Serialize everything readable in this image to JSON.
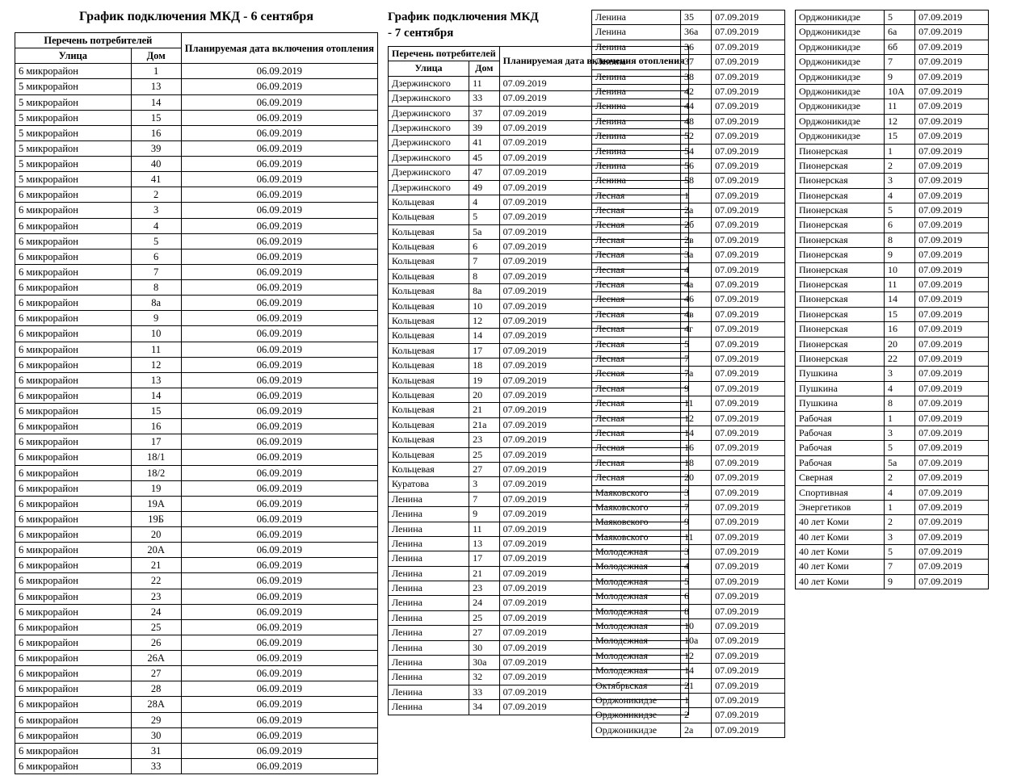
{
  "title1": "График подключения МКД - 6 сентября",
  "title2_a": "График подключения МКД",
  "title2_b": "- 7 сентября",
  "headers1": {
    "consumers": "Перечень потребителей",
    "plannedDate": "Планируемая дата включения отопления",
    "street": "Улица",
    "house": "Дом"
  },
  "headers2": {
    "consumers": "Перечень потребителей",
    "plannedDate": "Планируемая дата включения отопления",
    "street": "Улица",
    "house": "Дом"
  },
  "table1": [
    [
      "6 микрорайон",
      "1",
      "06.09.2019"
    ],
    [
      "5 микрорайон",
      "13",
      "06.09.2019"
    ],
    [
      "5 микрорайон",
      "14",
      "06.09.2019"
    ],
    [
      "5 микрорайон",
      "15",
      "06.09.2019"
    ],
    [
      "5 микрорайон",
      "16",
      "06.09.2019"
    ],
    [
      "5 микрорайон",
      "39",
      "06.09.2019"
    ],
    [
      "5 микрорайон",
      "40",
      "06.09.2019"
    ],
    [
      "5 микрорайон",
      "41",
      "06.09.2019"
    ],
    [
      "6 микрорайон",
      "2",
      "06.09.2019"
    ],
    [
      "6 микрорайон",
      "3",
      "06.09.2019"
    ],
    [
      "6 микрорайон",
      "4",
      "06.09.2019"
    ],
    [
      "6 микрорайон",
      "5",
      "06.09.2019"
    ],
    [
      "6 микрорайон",
      "6",
      "06.09.2019"
    ],
    [
      "6 микрорайон",
      "7",
      "06.09.2019"
    ],
    [
      "6 микрорайон",
      "8",
      "06.09.2019"
    ],
    [
      "6 микрорайон",
      "8а",
      "06.09.2019"
    ],
    [
      "6 микрорайон",
      "9",
      "06.09.2019"
    ],
    [
      "6 микрорайон",
      "10",
      "06.09.2019"
    ],
    [
      "6 микрорайон",
      "11",
      "06.09.2019"
    ],
    [
      "6 микрорайон",
      "12",
      "06.09.2019"
    ],
    [
      "6 микрорайон",
      "13",
      "06.09.2019"
    ],
    [
      "6 микрорайон",
      "14",
      "06.09.2019"
    ],
    [
      "6 микрорайон",
      "15",
      "06.09.2019"
    ],
    [
      "6 микрорайон",
      "16",
      "06.09.2019"
    ],
    [
      "6 микрорайон",
      "17",
      "06.09.2019"
    ],
    [
      "6 микрорайон",
      "18/1",
      "06.09.2019"
    ],
    [
      "6 микрорайон",
      "18/2",
      "06.09.2019"
    ],
    [
      "6 микрорайон",
      "19",
      "06.09.2019"
    ],
    [
      "6 микрорайон",
      "19А",
      "06.09.2019"
    ],
    [
      "6 микрорайон",
      "19Б",
      "06.09.2019"
    ],
    [
      "6 микрорайон",
      "20",
      "06.09.2019"
    ],
    [
      "6 микрорайон",
      "20А",
      "06.09.2019"
    ],
    [
      "6 микрорайон",
      "21",
      "06.09.2019"
    ],
    [
      "6 микрорайон",
      "22",
      "06.09.2019"
    ],
    [
      "6 микрорайон",
      "23",
      "06.09.2019"
    ],
    [
      "6 микрорайон",
      "24",
      "06.09.2019"
    ],
    [
      "6 микрорайон",
      "25",
      "06.09.2019"
    ],
    [
      "6 микрорайон",
      "26",
      "06.09.2019"
    ],
    [
      "6 микрорайон",
      "26А",
      "06.09.2019"
    ],
    [
      "6 микрорайон",
      "27",
      "06.09.2019"
    ],
    [
      "6 микрорайон",
      "28",
      "06.09.2019"
    ],
    [
      "6 микрорайон",
      "28А",
      "06.09.2019"
    ],
    [
      "6 микрорайон",
      "29",
      "06.09.2019"
    ],
    [
      "6 микрорайон",
      "30",
      "06.09.2019"
    ],
    [
      "6 микрорайон",
      "31",
      "06.09.2019"
    ],
    [
      "6 микрорайон",
      "33",
      "06.09.2019"
    ]
  ],
  "table2a": [
    [
      "Дзержинского",
      "11",
      "07.09.2019"
    ],
    [
      "Дзержинского",
      "33",
      "07.09.2019"
    ],
    [
      "Дзержинского",
      "37",
      "07.09.2019"
    ],
    [
      "Дзержинского",
      "39",
      "07.09.2019"
    ],
    [
      "Дзержинского",
      "41",
      "07.09.2019"
    ],
    [
      "Дзержинского",
      "45",
      "07.09.2019"
    ],
    [
      "Дзержинского",
      "47",
      "07.09.2019"
    ],
    [
      "Дзержинского",
      "49",
      "07.09.2019"
    ],
    [
      "Кольцевая",
      "4",
      "07.09.2019"
    ],
    [
      "Кольцевая",
      "5",
      "07.09.2019"
    ],
    [
      "Кольцевая",
      "5а",
      "07.09.2019"
    ],
    [
      "Кольцевая",
      "6",
      "07.09.2019"
    ],
    [
      "Кольцевая",
      "7",
      "07.09.2019"
    ],
    [
      "Кольцевая",
      "8",
      "07.09.2019"
    ],
    [
      "Кольцевая",
      "8а",
      "07.09.2019"
    ],
    [
      "Кольцевая",
      "10",
      "07.09.2019"
    ],
    [
      "Кольцевая",
      "12",
      "07.09.2019"
    ],
    [
      "Кольцевая",
      "14",
      "07.09.2019"
    ],
    [
      "Кольцевая",
      "17",
      "07.09.2019"
    ],
    [
      "Кольцевая",
      "18",
      "07.09.2019"
    ],
    [
      "Кольцевая",
      "19",
      "07.09.2019"
    ],
    [
      "Кольцевая",
      "20",
      "07.09.2019"
    ],
    [
      "Кольцевая",
      "21",
      "07.09.2019"
    ],
    [
      "Кольцевая",
      "21а",
      "07.09.2019"
    ],
    [
      "Кольцевая",
      "23",
      "07.09.2019"
    ],
    [
      "Кольцевая",
      "25",
      "07.09.2019"
    ],
    [
      "Кольцевая",
      "27",
      "07.09.2019"
    ],
    [
      "Куратова",
      "3",
      "07.09.2019"
    ],
    [
      "Ленина",
      "7",
      "07.09.2019"
    ],
    [
      "Ленина",
      "9",
      "07.09.2019"
    ],
    [
      "Ленина",
      "11",
      "07.09.2019"
    ],
    [
      "Ленина",
      "13",
      "07.09.2019"
    ],
    [
      "Ленина",
      "17",
      "07.09.2019"
    ],
    [
      "Ленина",
      "21",
      "07.09.2019"
    ],
    [
      "Ленина",
      "23",
      "07.09.2019"
    ],
    [
      "Ленина",
      "24",
      "07.09.2019"
    ],
    [
      "Ленина",
      "25",
      "07.09.2019"
    ],
    [
      "Ленина",
      "27",
      "07.09.2019"
    ],
    [
      "Ленина",
      "30",
      "07.09.2019"
    ],
    [
      "Ленина",
      "30а",
      "07.09.2019"
    ],
    [
      "Ленина",
      "32",
      "07.09.2019"
    ],
    [
      "Ленина",
      "33",
      "07.09.2019"
    ],
    [
      "Ленина",
      "34",
      "07.09.2019"
    ]
  ],
  "table2b": [
    [
      "Ленина",
      "35",
      "07.09.2019"
    ],
    [
      "Ленина",
      "36а",
      "07.09.2019"
    ],
    [
      "Ленина",
      "36",
      "07.09.2019"
    ],
    [
      "Ленина",
      "37",
      "07.09.2019"
    ],
    [
      "Ленина",
      "38",
      "07.09.2019"
    ],
    [
      "Ленина",
      "42",
      "07.09.2019"
    ],
    [
      "Ленина",
      "44",
      "07.09.2019"
    ],
    [
      "Ленина",
      "48",
      "07.09.2019"
    ],
    [
      "Ленина",
      "52",
      "07.09.2019"
    ],
    [
      "Ленина",
      "54",
      "07.09.2019"
    ],
    [
      "Ленина",
      "56",
      "07.09.2019"
    ],
    [
      "Ленина",
      "58",
      "07.09.2019"
    ],
    [
      "Лесная",
      "1",
      "07.09.2019"
    ],
    [
      "Лесная",
      "2а",
      "07.09.2019"
    ],
    [
      "Лесная",
      "2б",
      "07.09.2019"
    ],
    [
      "Лесная",
      "2в",
      "07.09.2019"
    ],
    [
      "Лесная",
      "3а",
      "07.09.2019"
    ],
    [
      "Лесная",
      "4",
      "07.09.2019"
    ],
    [
      "Лесная",
      "4а",
      "07.09.2019"
    ],
    [
      "Лесная",
      "46",
      "07.09.2019"
    ],
    [
      "Лесная",
      "4в",
      "07.09.2019"
    ],
    [
      "Лесная",
      "4г",
      "07.09.2019"
    ],
    [
      "Лесная",
      "5",
      "07.09.2019"
    ],
    [
      "Лесная",
      "7",
      "07.09.2019"
    ],
    [
      "Лесная",
      "7а",
      "07.09.2019"
    ],
    [
      "Лесная",
      "9",
      "07.09.2019"
    ],
    [
      "Лесная",
      "11",
      "07.09.2019"
    ],
    [
      "Лесная",
      "12",
      "07.09.2019"
    ],
    [
      "Лесная",
      "14",
      "07.09.2019"
    ],
    [
      "Лесная",
      "16",
      "07.09.2019"
    ],
    [
      "Лесная",
      "18",
      "07.09.2019"
    ],
    [
      "Лесная",
      "20",
      "07.09.2019"
    ],
    [
      "Маяковского",
      "3",
      "07.09.2019"
    ],
    [
      "Маяковского",
      "7",
      "07.09.2019"
    ],
    [
      "Маяковского",
      "9",
      "07.09.2019"
    ],
    [
      "Маяковского",
      "11",
      "07.09.2019"
    ],
    [
      "Молодежная",
      "3",
      "07.09.2019"
    ],
    [
      "Молодежная",
      "4",
      "07.09.2019"
    ],
    [
      "Молодежная",
      "5",
      "07.09.2019"
    ],
    [
      "Молодежная",
      "6",
      "07.09.2019"
    ],
    [
      "Молодежная",
      "8",
      "07.09.2019"
    ],
    [
      "Молодежная",
      "10",
      "07.09.2019"
    ],
    [
      "Молодежная",
      "10а",
      "07.09.2019"
    ],
    [
      "Молодежная",
      "12",
      "07.09.2019"
    ],
    [
      "Молодежная",
      "14",
      "07.09.2019"
    ],
    [
      "Октябрьская",
      "21",
      "07.09.2019"
    ],
    [
      "Орджоникидзе",
      "1",
      "07.09.2019"
    ],
    [
      "Орджоникидзе",
      "2",
      "07.09.2019"
    ],
    [
      "Орджоникидзе",
      "2а",
      "07.09.2019"
    ]
  ],
  "table2c": [
    [
      "Орджоникидзе",
      "5",
      "07.09.2019"
    ],
    [
      "Орджоникидзе",
      "6а",
      "07.09.2019"
    ],
    [
      "Орджоникидзе",
      "6б",
      "07.09.2019"
    ],
    [
      "Орджоникидзе",
      "7",
      "07.09.2019"
    ],
    [
      "Орджоникидзе",
      "9",
      "07.09.2019"
    ],
    [
      "Орджоникидзе",
      "10А",
      "07.09.2019"
    ],
    [
      "Орджоникидзе",
      "11",
      "07.09.2019"
    ],
    [
      "Орджоникидзе",
      "12",
      "07.09.2019"
    ],
    [
      "Орджоникидзе",
      "15",
      "07.09.2019"
    ],
    [
      "Пионерская",
      "1",
      "07.09.2019"
    ],
    [
      "Пионерская",
      "2",
      "07.09.2019"
    ],
    [
      "Пионерская",
      "3",
      "07.09.2019"
    ],
    [
      "Пионерская",
      "4",
      "07.09.2019"
    ],
    [
      "Пионерская",
      "5",
      "07.09.2019"
    ],
    [
      "Пионерская",
      "6",
      "07.09.2019"
    ],
    [
      "Пионерская",
      "8",
      "07.09.2019"
    ],
    [
      "Пионерская",
      "9",
      "07.09.2019"
    ],
    [
      "Пионерская",
      "10",
      "07.09.2019"
    ],
    [
      "Пионерская",
      "11",
      "07.09.2019"
    ],
    [
      "Пионерская",
      "14",
      "07.09.2019"
    ],
    [
      "Пионерская",
      "15",
      "07.09.2019"
    ],
    [
      "Пионерская",
      "16",
      "07.09.2019"
    ],
    [
      "Пионерская",
      "20",
      "07.09.2019"
    ],
    [
      "Пионерская",
      "22",
      "07.09.2019"
    ],
    [
      "Пушкина",
      "3",
      "07.09.2019"
    ],
    [
      "Пушкина",
      "4",
      "07.09.2019"
    ],
    [
      "Пушкина",
      "8",
      "07.09.2019"
    ],
    [
      "Рабочая",
      "1",
      "07.09.2019"
    ],
    [
      "Рабочая",
      "3",
      "07.09.2019"
    ],
    [
      "Рабочая",
      "5",
      "07.09.2019"
    ],
    [
      "Рабочая",
      "5а",
      "07.09.2019"
    ],
    [
      "Сверная",
      "2",
      "07.09.2019"
    ],
    [
      "Спортивная",
      "4",
      "07.09.2019"
    ],
    [
      "Энергетиков",
      "1",
      "07.09.2019"
    ],
    [
      "40 лет Коми",
      "2",
      "07.09.2019"
    ],
    [
      "40 лет Коми",
      "3",
      "07.09.2019"
    ],
    [
      "40 лет Коми",
      "5",
      "07.09.2019"
    ],
    [
      "40 лет Коми",
      "7",
      "07.09.2019"
    ],
    [
      "40 лет Коми",
      "9",
      "07.09.2019"
    ]
  ],
  "colWidths1": {
    "street": "40%",
    "house": "18%",
    "date": "42%"
  },
  "colWidths2": {
    "street": "46%",
    "house": "16%",
    "date": "38%"
  }
}
